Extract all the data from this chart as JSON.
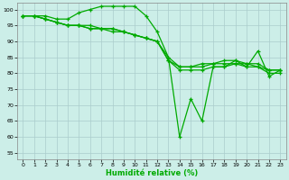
{
  "xlabel": "Humidité relative (%)",
  "bg_color": "#cceee8",
  "grid_color": "#aacccc",
  "line_color": "#00aa00",
  "spine_color": "#888888",
  "ylim": [
    53,
    102
  ],
  "xlim": [
    -0.5,
    23.5
  ],
  "yticks": [
    55,
    60,
    65,
    70,
    75,
    80,
    85,
    90,
    95,
    100
  ],
  "xticks": [
    0,
    1,
    2,
    3,
    4,
    5,
    6,
    7,
    8,
    9,
    10,
    11,
    12,
    13,
    14,
    15,
    16,
    17,
    18,
    19,
    20,
    21,
    22,
    23
  ],
  "series": [
    [
      98,
      98,
      98,
      97,
      97,
      99,
      100,
      101,
      101,
      101,
      101,
      98,
      93,
      85,
      60,
      72,
      65,
      82,
      82,
      84,
      82,
      87,
      79,
      81
    ],
    [
      98,
      98,
      97,
      96,
      95,
      95,
      95,
      94,
      94,
      93,
      92,
      91,
      90,
      85,
      82,
      82,
      83,
      83,
      84,
      84,
      83,
      83,
      81,
      81
    ],
    [
      98,
      98,
      97,
      96,
      95,
      95,
      94,
      94,
      94,
      93,
      92,
      91,
      90,
      84,
      82,
      82,
      82,
      83,
      83,
      83,
      83,
      82,
      81,
      81
    ],
    [
      98,
      98,
      97,
      96,
      95,
      95,
      94,
      94,
      93,
      93,
      92,
      91,
      90,
      84,
      81,
      81,
      81,
      82,
      82,
      83,
      82,
      82,
      80,
      80
    ]
  ],
  "ylabel_fontsize": 5.5,
  "xlabel_fontsize": 6.0,
  "tick_fontsize": 4.5,
  "linewidth": 0.9,
  "markersize": 3.5,
  "markeredgewidth": 0.9
}
